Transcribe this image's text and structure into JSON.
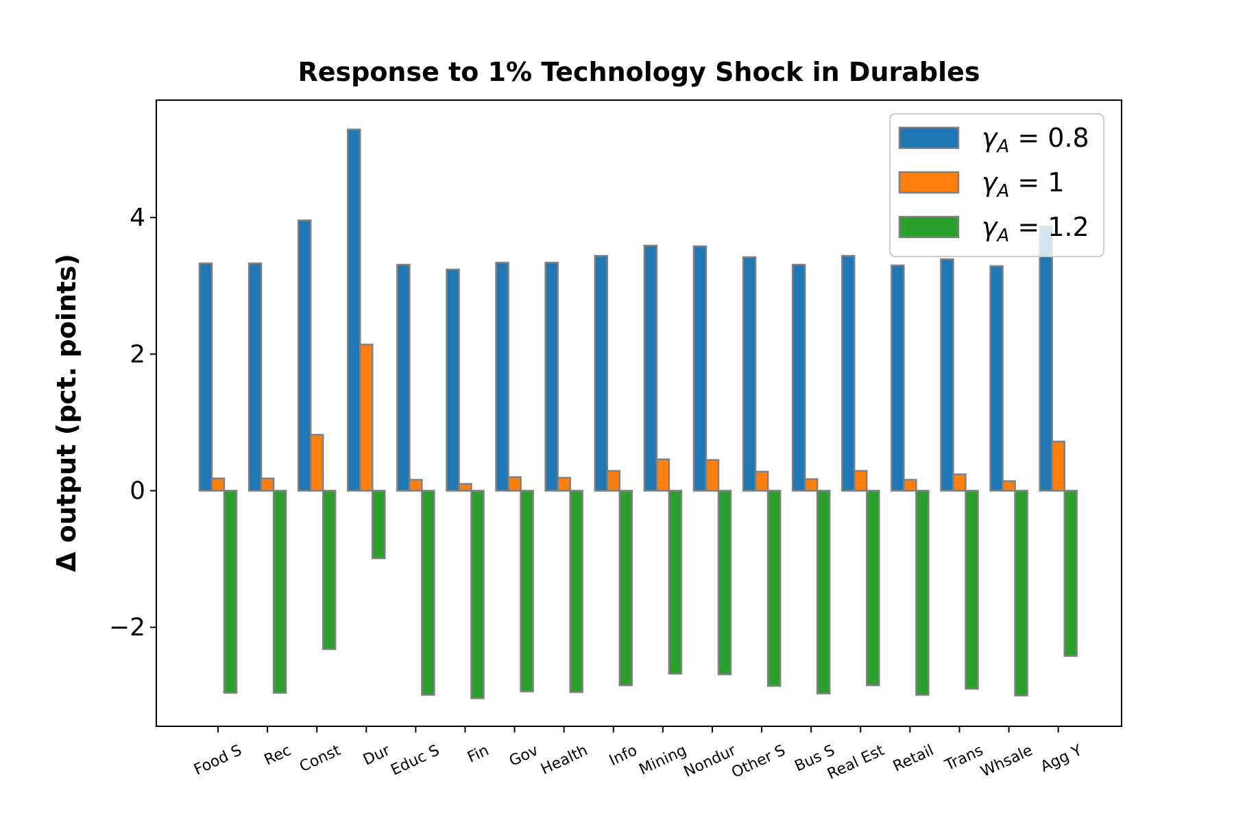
{
  "chart_data": {
    "type": "bar",
    "title": "Response to 1% Technology Shock in Durables",
    "xlabel": "",
    "ylabel": "Δ output (pct. points)",
    "categories": [
      "Food S",
      "Rec",
      "Const",
      "Dur",
      "Educ S",
      "Fin",
      "Gov",
      "Health",
      "Info",
      "Mining",
      "Nondur",
      "Other S",
      "Bus S",
      "Real Est",
      "Retail",
      "Trans",
      "Whsale",
      "Agg Y"
    ],
    "series": [
      {
        "name": "γA = 0.8",
        "color": "#1f77b4",
        "values": [
          3.33,
          3.33,
          3.96,
          5.29,
          3.31,
          3.24,
          3.34,
          3.34,
          3.44,
          3.59,
          3.58,
          3.42,
          3.31,
          3.44,
          3.3,
          3.39,
          3.29,
          3.87
        ]
      },
      {
        "name": "γA = 1",
        "color": "#ff7f0e",
        "values": [
          0.18,
          0.18,
          0.82,
          2.14,
          0.16,
          0.1,
          0.2,
          0.19,
          0.29,
          0.46,
          0.45,
          0.28,
          0.17,
          0.29,
          0.16,
          0.24,
          0.14,
          0.72
        ]
      },
      {
        "name": "γA = 1.2",
        "color": "#2ca02c",
        "values": [
          -2.96,
          -2.96,
          -2.32,
          -0.99,
          -2.99,
          -3.04,
          -2.94,
          -2.95,
          -2.85,
          -2.68,
          -2.69,
          -2.86,
          -2.97,
          -2.85,
          -2.99,
          -2.9,
          -3.0,
          -2.42
        ]
      }
    ],
    "legend_labels": [
      {
        "sym": "γ",
        "sub": "A",
        "rest": " = 0.8"
      },
      {
        "sym": "γ",
        "sub": "A",
        "rest": " = 1"
      },
      {
        "sym": "γ",
        "sub": "A",
        "rest": " = 1.2"
      }
    ],
    "yticks": [
      -2,
      0,
      2,
      4
    ],
    "ytick_labels": [
      "−2",
      "0",
      "2",
      "4"
    ],
    "ylim": [
      -3.45,
      5.72
    ],
    "bar_edge_color": "#808080",
    "legend_position": "top-right",
    "grid": false
  }
}
